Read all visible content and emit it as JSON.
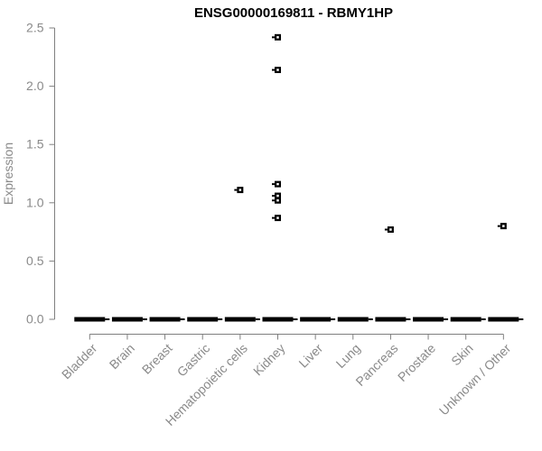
{
  "colors": {
    "background": "#ffffff",
    "title": "#000000",
    "axis_line": "#7f7f7f",
    "tick_label": "#8a8a8a",
    "data": "#000000",
    "point_center": "#ffffff"
  },
  "chart_data": {
    "type": "scatter",
    "subtype": "boxplot-with-outlier-points",
    "title": "ENSG00000169811 - RBMY1HP",
    "xlabel": "",
    "ylabel": "Expression",
    "ylim": [
      0,
      2.5
    ],
    "ytick_values": [
      0,
      0.5,
      1,
      1.5,
      2,
      2.5
    ],
    "ytick_labels": [
      "0.0",
      "0.5",
      "1.0",
      "1.5",
      "2.0",
      "2.5"
    ],
    "grid": false,
    "legend_position": "none",
    "x_label_rotation_deg": 45,
    "categories": [
      "Bladder",
      "Brain",
      "Breast",
      "Gastric",
      "Hematopoietic cells",
      "Kidney",
      "Liver",
      "Lung",
      "Pancreas",
      "Prostate",
      "Skin",
      "Unknown / Other"
    ],
    "zero_boxes": {
      "description": "collapsed boxplot bar drawn at this value for every category",
      "value": 0.0,
      "categories": [
        "Bladder",
        "Brain",
        "Breast",
        "Gastric",
        "Hematopoietic cells",
        "Kidney",
        "Liver",
        "Lung",
        "Pancreas",
        "Prostate",
        "Skin",
        "Unknown / Other"
      ]
    },
    "points": [
      {
        "category": "Hematopoietic cells",
        "value": 1.11
      },
      {
        "category": "Kidney",
        "value": 2.42
      },
      {
        "category": "Kidney",
        "value": 2.14
      },
      {
        "category": "Kidney",
        "value": 1.16
      },
      {
        "category": "Kidney",
        "value": 1.06
      },
      {
        "category": "Kidney",
        "value": 1.02
      },
      {
        "category": "Kidney",
        "value": 0.87
      },
      {
        "category": "Pancreas",
        "value": 0.77
      },
      {
        "category": "Unknown / Other",
        "value": 0.8
      }
    ]
  }
}
